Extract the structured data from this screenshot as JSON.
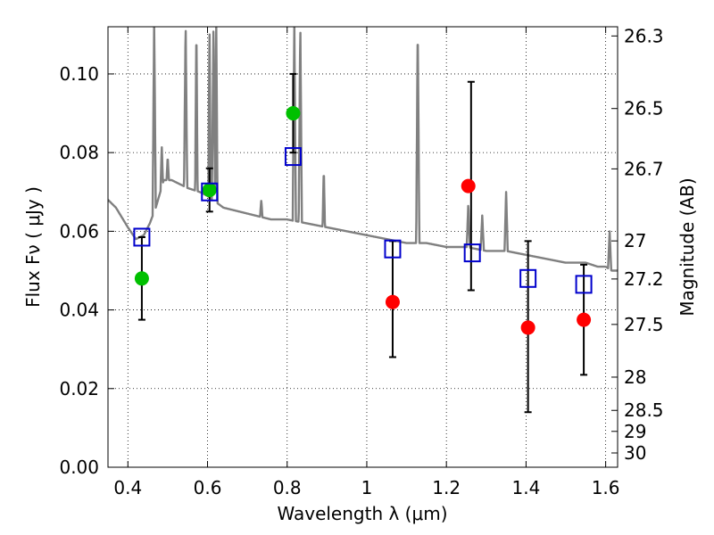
{
  "chart_data": {
    "type": "scatter",
    "title": "",
    "xlabel": "Wavelength  λ (μm)",
    "ylabel": "Flux  Fν  ( μJy )",
    "y2label": "Magnitude (AB)",
    "xlim": [
      0.35,
      1.63
    ],
    "ylim": [
      0.0,
      0.112
    ],
    "grid": true,
    "grid_style": "dotted",
    "xticks": [
      {
        "value": 0.4,
        "label": "0.4"
      },
      {
        "value": 0.6,
        "label": "0.6"
      },
      {
        "value": 0.8,
        "label": "0.8"
      },
      {
        "value": 1.0,
        "label": "1"
      },
      {
        "value": 1.2,
        "label": "1.2"
      },
      {
        "value": 1.4,
        "label": "1.4"
      },
      {
        "value": 1.6,
        "label": "1.6"
      }
    ],
    "yticks": [
      {
        "value": 0.0,
        "label": "0.00"
      },
      {
        "value": 0.02,
        "label": "0.02"
      },
      {
        "value": 0.04,
        "label": "0.04"
      },
      {
        "value": 0.06,
        "label": "0.06"
      },
      {
        "value": 0.08,
        "label": "0.08"
      },
      {
        "value": 0.1,
        "label": "0.10"
      }
    ],
    "y2ticks": [
      {
        "mag": 26.3,
        "label": "26.3"
      },
      {
        "mag": 26.5,
        "label": "26.5"
      },
      {
        "mag": 26.7,
        "label": "26.7"
      },
      {
        "mag": 27.0,
        "label": "27"
      },
      {
        "mag": 27.2,
        "label": "27.2"
      },
      {
        "mag": 27.5,
        "label": "27.5"
      },
      {
        "mag": 28.0,
        "label": "28"
      },
      {
        "mag": 28.5,
        "label": "28.5"
      },
      {
        "mag": 29.0,
        "label": "29"
      },
      {
        "mag": 30.0,
        "label": "30"
      }
    ],
    "model_spectrum": {
      "color": "#808080",
      "continuum": [
        [
          0.35,
          0.068
        ],
        [
          0.37,
          0.066
        ],
        [
          0.4,
          0.061
        ],
        [
          0.42,
          0.058
        ],
        [
          0.44,
          0.059
        ],
        [
          0.455,
          0.062
        ],
        [
          0.47,
          0.066
        ],
        [
          0.49,
          0.073
        ],
        [
          0.51,
          0.073
        ],
        [
          0.53,
          0.072
        ],
        [
          0.55,
          0.071
        ],
        [
          0.58,
          0.07
        ],
        [
          0.6,
          0.069
        ],
        [
          0.64,
          0.066
        ],
        [
          0.68,
          0.065
        ],
        [
          0.72,
          0.064
        ],
        [
          0.76,
          0.063
        ],
        [
          0.8,
          0.063
        ],
        [
          0.85,
          0.062
        ],
        [
          0.9,
          0.061
        ],
        [
          0.95,
          0.06
        ],
        [
          1.0,
          0.059
        ],
        [
          1.05,
          0.058
        ],
        [
          1.1,
          0.057
        ],
        [
          1.15,
          0.057
        ],
        [
          1.2,
          0.056
        ],
        [
          1.25,
          0.056
        ],
        [
          1.3,
          0.055
        ],
        [
          1.35,
          0.055
        ],
        [
          1.4,
          0.054
        ],
        [
          1.45,
          0.053
        ],
        [
          1.5,
          0.052
        ],
        [
          1.55,
          0.052
        ],
        [
          1.58,
          0.051
        ],
        [
          1.6,
          0.051
        ],
        [
          1.615,
          0.05
        ],
        [
          1.63,
          0.05
        ]
      ],
      "emission_lines": [
        {
          "x": 0.466,
          "peak": 0.113,
          "width": 0.004
        },
        {
          "x": 0.485,
          "peak": 0.082,
          "width": 0.003
        },
        {
          "x": 0.5,
          "peak": 0.079,
          "width": 0.003
        },
        {
          "x": 0.545,
          "peak": 0.113,
          "width": 0.004
        },
        {
          "x": 0.572,
          "peak": 0.113,
          "width": 0.003
        },
        {
          "x": 0.605,
          "peak": 0.113,
          "width": 0.003
        },
        {
          "x": 0.615,
          "peak": 0.113,
          "width": 0.004
        },
        {
          "x": 0.622,
          "peak": 0.113,
          "width": 0.003
        },
        {
          "x": 0.735,
          "peak": 0.068,
          "width": 0.003
        },
        {
          "x": 0.818,
          "peak": 0.113,
          "width": 0.004
        },
        {
          "x": 0.833,
          "peak": 0.113,
          "width": 0.004
        },
        {
          "x": 0.892,
          "peak": 0.076,
          "width": 0.003
        },
        {
          "x": 1.128,
          "peak": 0.113,
          "width": 0.004
        },
        {
          "x": 1.255,
          "peak": 0.067,
          "width": 0.004
        },
        {
          "x": 1.29,
          "peak": 0.064,
          "width": 0.004
        },
        {
          "x": 1.35,
          "peak": 0.07,
          "width": 0.004
        },
        {
          "x": 1.61,
          "peak": 0.06,
          "width": 0.004
        }
      ]
    },
    "series": [
      {
        "marker": "circle",
        "color": "#00c000",
        "points": [
          {
            "x": 0.435,
            "y": 0.048
          },
          {
            "x": 0.605,
            "y": 0.0705
          },
          {
            "x": 0.815,
            "y": 0.09
          }
        ]
      },
      {
        "marker": "circle",
        "color": "#ff0000",
        "points": [
          {
            "x": 1.065,
            "y": 0.042
          },
          {
            "x": 1.255,
            "y": 0.0715
          },
          {
            "x": 1.405,
            "y": 0.0355
          },
          {
            "x": 1.545,
            "y": 0.0375
          }
        ]
      },
      {
        "marker": "open-square",
        "color": "#0000cc",
        "points": [
          {
            "x": 0.435,
            "y": 0.0585
          },
          {
            "x": 0.605,
            "y": 0.07
          },
          {
            "x": 0.815,
            "y": 0.079
          },
          {
            "x": 1.065,
            "y": 0.0555
          },
          {
            "x": 1.265,
            "y": 0.0545
          },
          {
            "x": 1.405,
            "y": 0.048
          },
          {
            "x": 1.545,
            "y": 0.0465
          }
        ]
      }
    ],
    "errorbars": [
      {
        "x": 0.435,
        "low": 0.0375,
        "high": 0.0585
      },
      {
        "x": 0.605,
        "low": 0.065,
        "high": 0.076
      },
      {
        "x": 0.815,
        "low": 0.08,
        "high": 0.1
      },
      {
        "x": 1.065,
        "low": 0.028,
        "high": 0.0575
      },
      {
        "x": 1.262,
        "low": 0.045,
        "high": 0.098
      },
      {
        "x": 1.405,
        "low": 0.014,
        "high": 0.0575
      },
      {
        "x": 1.545,
        "low": 0.0235,
        "high": 0.0515
      }
    ]
  }
}
